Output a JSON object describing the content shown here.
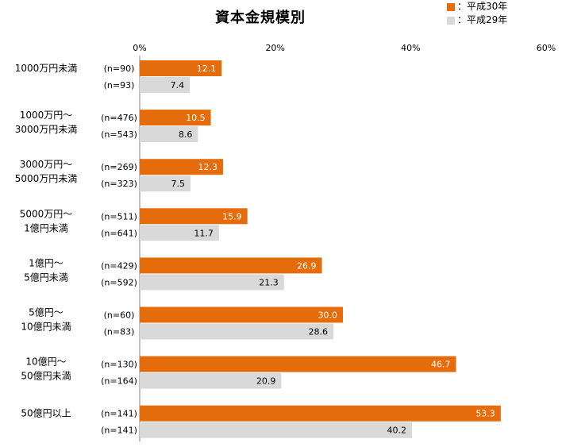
{
  "chart_data": {
    "type": "bar",
    "orientation": "horizontal",
    "title": "資本金規模別",
    "xlabel": "",
    "ylabel": "",
    "xlim": [
      0,
      60
    ],
    "ticks": [
      {
        "value": 0,
        "label": "0%"
      },
      {
        "value": 20,
        "label": "20%"
      },
      {
        "value": 40,
        "label": "40%"
      },
      {
        "value": 60,
        "label": "60%"
      }
    ],
    "legend_position": "top-right",
    "series": [
      {
        "name": "平成30年",
        "legend_label": "：平成30年",
        "color": "#E46C0A",
        "label_color": "#ffffff",
        "values": [
          12.1,
          10.5,
          12.3,
          15.9,
          26.9,
          30.0,
          46.7,
          53.3
        ],
        "value_labels": [
          "12.1",
          "10.5",
          "12.3",
          "15.9",
          "26.9",
          "30.0",
          "46.7",
          "53.3"
        ],
        "n": [
          "(n=90)",
          "(n=476)",
          "(n=269)",
          "(n=511)",
          "(n=429)",
          "(n=60)",
          "(n=130)",
          "(n=141)"
        ]
      },
      {
        "name": "平成29年",
        "legend_label": "：平成29年",
        "color": "#D9D9D9",
        "label_color": "#000000",
        "values": [
          7.4,
          8.6,
          7.5,
          11.7,
          21.3,
          28.6,
          20.9,
          40.2
        ],
        "value_labels": [
          "7.4",
          "8.6",
          "7.5",
          "11.7",
          "21.3",
          "28.6",
          "20.9",
          "40.2"
        ],
        "n": [
          "(n=93)",
          "(n=543)",
          "(n=323)",
          "(n=641)",
          "(n=592)",
          "(n=83)",
          "(n=164)",
          "(n=141)"
        ]
      }
    ],
    "categories": [
      [
        "1000万円未満"
      ],
      [
        "1000万円～",
        "3000万円未満"
      ],
      [
        "3000万円～",
        "5000万円未満"
      ],
      [
        "5000万円～",
        "1億円未満"
      ],
      [
        "1億円～",
        "5億円未満"
      ],
      [
        "5億円～",
        "10億円未満"
      ],
      [
        "10億円～",
        "50億円未満"
      ],
      [
        "50億円以上"
      ]
    ]
  }
}
